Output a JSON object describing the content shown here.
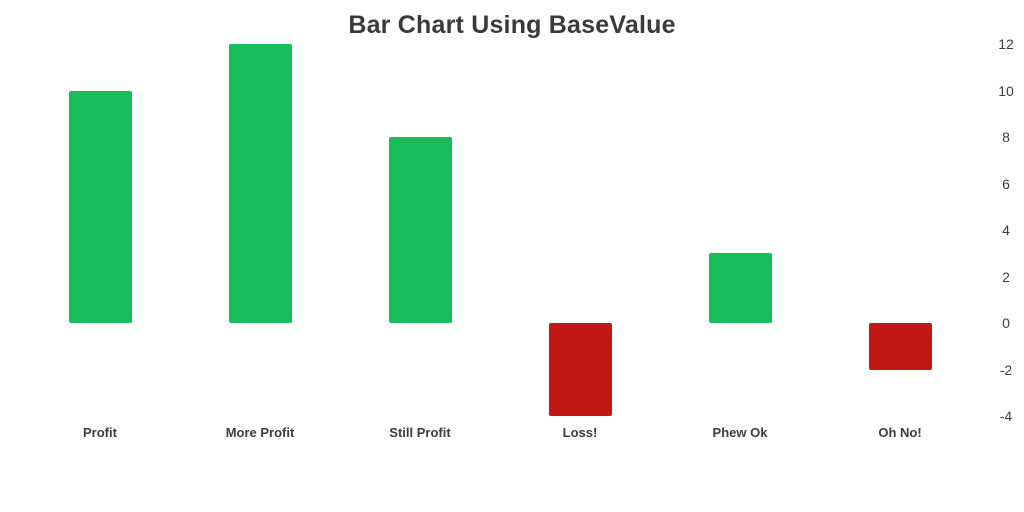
{
  "title": "Bar Chart Using BaseValue",
  "colors": {
    "positive_bar": "#18BE5C",
    "negative_bar": "#C21714",
    "title_text": "#3a3a3a",
    "label_text": "#3d3d3d",
    "background": "#ffffff"
  },
  "chart_data": {
    "type": "bar",
    "title": "Bar Chart Using BaseValue",
    "categories": [
      "Profit",
      "More Profit",
      "Still Profit",
      "Loss!",
      "Phew Ok",
      "Oh No!"
    ],
    "values": [
      10,
      12,
      8,
      -4,
      3,
      -2
    ],
    "base_value": 0,
    "xlabel": "",
    "ylabel": "",
    "ylim": [
      -4,
      12
    ],
    "yticks": [
      12,
      10,
      8,
      6,
      4,
      2,
      0,
      -2,
      -4
    ],
    "grid": false,
    "legend": "none",
    "y_axis_side": "right",
    "positive_color": "#18BE5C",
    "negative_color": "#C21714"
  }
}
